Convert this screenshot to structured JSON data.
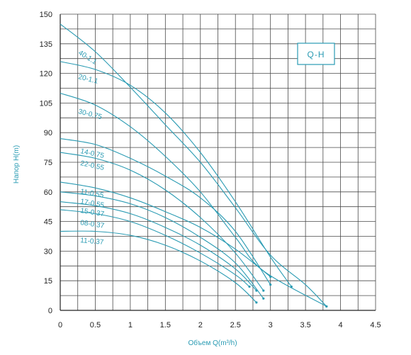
{
  "chart_data": {
    "type": "line",
    "title": "Q-H",
    "xlabel": "Объем Q(m³/h)",
    "ylabel": "Напор H(m)",
    "xlim": [
      0,
      4.5
    ],
    "ylim": [
      0,
      150
    ],
    "x_ticks": [
      "0",
      "0.5",
      "1",
      "1.5",
      "2",
      "2.5",
      "3",
      "3.5",
      "4",
      "4.5"
    ],
    "y_ticks": [
      "0",
      "15",
      "30",
      "45",
      "60",
      "75",
      "90",
      "105",
      "120",
      "135",
      "150"
    ],
    "grid": true,
    "colors": {
      "series": "#2a9bb3",
      "grid": "#4a4a4a"
    },
    "series": [
      {
        "name": "40-1.1",
        "points": [
          [
            0,
            145
          ],
          [
            0.5,
            131
          ],
          [
            1,
            113
          ],
          [
            1.5,
            94
          ],
          [
            2,
            75
          ],
          [
            2.5,
            52
          ],
          [
            3,
            28
          ],
          [
            3.5,
            13
          ],
          [
            3.8,
            2
          ]
        ]
      },
      {
        "name": "20-1.1",
        "points": [
          [
            0,
            126
          ],
          [
            0.5,
            122
          ],
          [
            1,
            114
          ],
          [
            1.5,
            100
          ],
          [
            2,
            80
          ],
          [
            2.5,
            55
          ],
          [
            3,
            27
          ],
          [
            3.3,
            12
          ]
        ]
      },
      {
        "name": "30-0.75",
        "points": [
          [
            0,
            110
          ],
          [
            0.5,
            104
          ],
          [
            1,
            93
          ],
          [
            1.5,
            78
          ],
          [
            2,
            60
          ],
          [
            2.5,
            37
          ],
          [
            2.9,
            20
          ],
          [
            3.8,
            2
          ]
        ]
      },
      {
        "name": "14-0.75",
        "points": [
          [
            0,
            87
          ],
          [
            0.5,
            84
          ],
          [
            1,
            77
          ],
          [
            1.5,
            68
          ],
          [
            2,
            57
          ],
          [
            2.5,
            40
          ],
          [
            3,
            13
          ]
        ]
      },
      {
        "name": "22-0.55",
        "points": [
          [
            0,
            80
          ],
          [
            0.5,
            77
          ],
          [
            1,
            71
          ],
          [
            1.5,
            61
          ],
          [
            2,
            47
          ],
          [
            2.5,
            29
          ],
          [
            2.9,
            10
          ]
        ]
      },
      {
        "name": "11-0.55",
        "points": [
          [
            0,
            65
          ],
          [
            0.5,
            62
          ],
          [
            1,
            57
          ],
          [
            1.5,
            50
          ],
          [
            2,
            42
          ],
          [
            2.5,
            31
          ],
          [
            3,
            17
          ]
        ]
      },
      {
        "name": "17-0.55",
        "points": [
          [
            0,
            60
          ],
          [
            0.5,
            58
          ],
          [
            1,
            54
          ],
          [
            1.5,
            47
          ],
          [
            2,
            37
          ],
          [
            2.5,
            24
          ],
          [
            2.9,
            6
          ]
        ]
      },
      {
        "name": "15-0.37",
        "points": [
          [
            0,
            55
          ],
          [
            0.5,
            53
          ],
          [
            1,
            49
          ],
          [
            1.5,
            42
          ],
          [
            2,
            33
          ],
          [
            2.5,
            21
          ],
          [
            2.8,
            10
          ]
        ]
      },
      {
        "name": "08-0.37",
        "points": [
          [
            0,
            51
          ],
          [
            0.5,
            49
          ],
          [
            1,
            45
          ],
          [
            1.5,
            38
          ],
          [
            2,
            29
          ],
          [
            2.5,
            18
          ],
          [
            2.7,
            12
          ]
        ]
      },
      {
        "name": "11-0.37",
        "points": [
          [
            0,
            40
          ],
          [
            0.5,
            40
          ],
          [
            1,
            38
          ],
          [
            1.5,
            33
          ],
          [
            2,
            25
          ],
          [
            2.5,
            14
          ],
          [
            2.8,
            4
          ]
        ]
      }
    ]
  }
}
